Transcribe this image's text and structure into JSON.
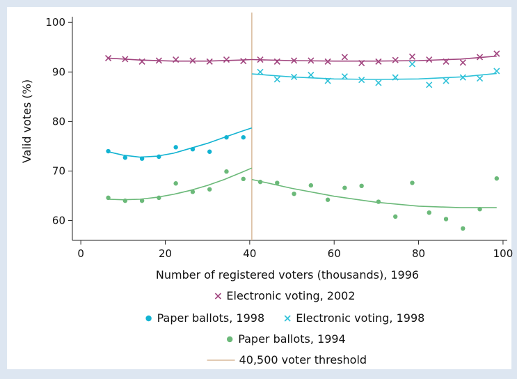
{
  "chart_data": {
    "type": "scatter",
    "xlabel": "Number of registered voters (thousands), 1996",
    "ylabel": "Valid votes (%)",
    "xlim": [
      -2,
      101
    ],
    "ylim": [
      56,
      102
    ],
    "xticks": [
      0,
      20,
      40,
      60,
      80,
      100
    ],
    "yticks": [
      60,
      70,
      80,
      90,
      100
    ],
    "threshold": {
      "x": 40.5,
      "label": "40,500 voter threshold",
      "color": "#d8b99a"
    },
    "legend_placement": "bottom-center",
    "series": [
      {
        "name": "Electronic voting, 2002",
        "marker": "x",
        "color": "#a1457f",
        "x": [
          6.5,
          10.5,
          14.5,
          18.5,
          22.5,
          26.5,
          30.5,
          34.5,
          38.5,
          42.5,
          46.5,
          50.5,
          54.5,
          58.5,
          62.5,
          66.5,
          70.5,
          74.5,
          78.5,
          82.5,
          86.5,
          90.5,
          94.5,
          98.5
        ],
        "y": [
          92.8,
          92.6,
          92.1,
          92.3,
          92.5,
          92.3,
          92.1,
          92.5,
          92.2,
          92.5,
          92.1,
          92.3,
          92.3,
          92.1,
          93.0,
          91.8,
          92.1,
          92.4,
          93.1,
          92.5,
          92.1,
          91.9,
          93.0,
          93.7
        ],
        "fit": {
          "segments": [
            {
              "x": [
                6.5,
                14,
                22,
                30,
                38,
                40.5
              ],
              "y": [
                92.8,
                92.4,
                92.2,
                92.2,
                92.4,
                92.5
              ]
            },
            {
              "x": [
                40.5,
                50,
                60,
                70,
                80,
                90,
                98.5
              ],
              "y": [
                92.5,
                92.3,
                92.2,
                92.2,
                92.3,
                92.6,
                93.2
              ]
            }
          ]
        }
      },
      {
        "name": "Paper ballots, 1998",
        "marker": "dot",
        "color": "#12b3d2",
        "x": [
          6.5,
          10.5,
          14.5,
          18.5,
          22.5,
          26.5,
          30.5,
          34.5,
          38.5
        ],
        "y": [
          74.0,
          72.7,
          72.5,
          72.9,
          74.8,
          74.4,
          73.9,
          76.8,
          76.8
        ],
        "fit": {
          "segments": [
            {
              "x": [
                6.5,
                10,
                14,
                18,
                22,
                26,
                30,
                34,
                38,
                40.5
              ],
              "y": [
                73.9,
                73.2,
                72.8,
                73.0,
                73.6,
                74.6,
                75.6,
                76.8,
                78.0,
                78.7
              ]
            }
          ]
        }
      },
      {
        "name": "Electronic voting, 1998",
        "marker": "x",
        "color": "#2ec1d8",
        "x": [
          42.5,
          46.5,
          50.5,
          54.5,
          58.5,
          62.5,
          66.5,
          70.5,
          74.5,
          78.5,
          82.5,
          86.5,
          90.5,
          94.5,
          98.5
        ],
        "y": [
          90.0,
          88.5,
          89.0,
          89.4,
          88.2,
          89.1,
          88.4,
          87.8,
          88.9,
          91.6,
          87.4,
          88.2,
          88.9,
          88.7,
          90.2
        ],
        "fit": {
          "segments": [
            {
              "x": [
                40.5,
                50,
                60,
                70,
                80,
                90,
                98.5
              ],
              "y": [
                89.6,
                89.0,
                88.6,
                88.5,
                88.6,
                89.0,
                89.7
              ]
            }
          ]
        }
      },
      {
        "name": "Paper ballots, 1994",
        "marker": "dot",
        "color": "#6bb979",
        "x": [
          6.5,
          10.5,
          14.5,
          18.5,
          22.5,
          26.5,
          30.5,
          34.5,
          38.5,
          42.5,
          46.5,
          50.5,
          54.5,
          58.5,
          62.5,
          66.5,
          70.5,
          74.5,
          78.5,
          82.5,
          86.5,
          90.5,
          94.5,
          98.5
        ],
        "y": [
          64.6,
          64.0,
          64.0,
          64.6,
          67.5,
          65.8,
          66.3,
          69.9,
          68.4,
          67.8,
          67.6,
          65.4,
          67.1,
          64.2,
          66.6,
          67.0,
          63.8,
          60.8,
          67.6,
          61.6,
          60.3,
          58.4,
          62.3,
          68.5
        ],
        "fit": {
          "segments": [
            {
              "x": [
                6.5,
                10,
                14,
                18,
                22,
                26,
                30,
                34,
                38,
                40.5
              ],
              "y": [
                64.3,
                64.2,
                64.3,
                64.7,
                65.3,
                66.1,
                67.1,
                68.3,
                69.7,
                70.6
              ]
            },
            {
              "x": [
                40.5,
                50,
                60,
                70,
                80,
                90,
                98.5
              ],
              "y": [
                68.3,
                66.5,
                64.9,
                63.7,
                62.9,
                62.6,
                62.6
              ]
            }
          ]
        }
      }
    ],
    "legend_rows": [
      [
        {
          "label": "Electronic voting, 2002",
          "marker": "x",
          "color": "#a1457f"
        }
      ],
      [
        {
          "label": "Paper ballots, 1998",
          "marker": "dot",
          "color": "#12b3d2"
        },
        {
          "label": "Electronic voting, 1998",
          "marker": "x",
          "color": "#2ec1d8"
        }
      ],
      [
        {
          "label": "Paper ballots, 1994",
          "marker": "dot",
          "color": "#6bb979"
        }
      ],
      [
        {
          "label": "40,500 voter threshold",
          "marker": "line",
          "color": "#d8b99a"
        }
      ]
    ]
  }
}
